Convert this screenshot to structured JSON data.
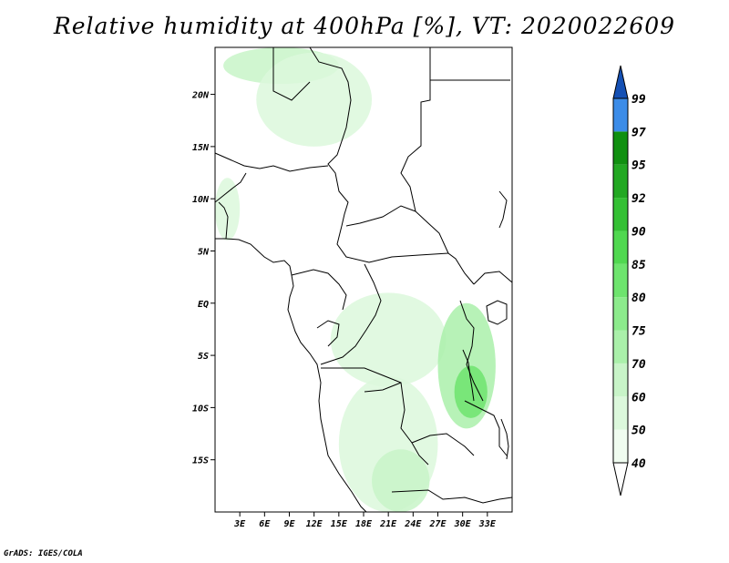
{
  "title": "Relative humidity at 400hPa [%], VT: 2020022609",
  "credit": "GrADS: IGES/COLA",
  "map": {
    "lon_range": [
      0,
      36
    ],
    "lat_range": [
      -20,
      24.5
    ],
    "lat_ticks": [
      {
        "value": 20,
        "label": "20N"
      },
      {
        "value": 15,
        "label": "15N"
      },
      {
        "value": 10,
        "label": "10N"
      },
      {
        "value": 5,
        "label": "5N"
      },
      {
        "value": 0,
        "label": "EQ"
      },
      {
        "value": -5,
        "label": "5S"
      },
      {
        "value": -10,
        "label": "10S"
      },
      {
        "value": -15,
        "label": "15S"
      }
    ],
    "lon_ticks": [
      {
        "value": 3,
        "label": "3E"
      },
      {
        "value": 6,
        "label": "6E"
      },
      {
        "value": 9,
        "label": "9E"
      },
      {
        "value": 12,
        "label": "12E"
      },
      {
        "value": 15,
        "label": "15E"
      },
      {
        "value": 18,
        "label": "18E"
      },
      {
        "value": 21,
        "label": "21E"
      },
      {
        "value": 24,
        "label": "24E"
      },
      {
        "value": 27,
        "label": "27E"
      },
      {
        "value": 30,
        "label": "30E"
      },
      {
        "value": 33,
        "label": "33E"
      }
    ]
  },
  "colorbar": {
    "levels": [
      {
        "label": "40",
        "color": "#f0fcf0"
      },
      {
        "label": "50",
        "color": "#dcf8dc"
      },
      {
        "label": "60",
        "color": "#c8f4c8"
      },
      {
        "label": "70",
        "color": "#aaf0aa"
      },
      {
        "label": "75",
        "color": "#8ceb8c"
      },
      {
        "label": "80",
        "color": "#6ee46e"
      },
      {
        "label": "85",
        "color": "#50d850"
      },
      {
        "label": "90",
        "color": "#34c034"
      },
      {
        "label": "92",
        "color": "#22a822"
      },
      {
        "label": "95",
        "color": "#109010"
      },
      {
        "label": "97",
        "color": "#3c8ce8"
      },
      {
        "label": "99",
        "color": "#1e64d2"
      }
    ],
    "bottom_color": "#ffffff",
    "top_color": "#1450b4"
  },
  "humidity_regions": [
    {
      "name": "sahara-north",
      "level": 2,
      "lon": [
        1,
        15
      ],
      "lat": [
        21,
        24.5
      ]
    },
    {
      "name": "sahara-plume",
      "level": 1,
      "lon": [
        5,
        19
      ],
      "lat": [
        15,
        24
      ]
    },
    {
      "name": "west-coast",
      "level": 1,
      "lon": [
        0,
        3
      ],
      "lat": [
        6,
        12
      ]
    },
    {
      "name": "congo-band",
      "level": 1,
      "lon": [
        14,
        28
      ],
      "lat": [
        -8,
        1
      ]
    },
    {
      "name": "east-lakes",
      "level": 3,
      "lon": [
        27,
        34
      ],
      "lat": [
        -12,
        0
      ]
    },
    {
      "name": "lakes-core",
      "level": 5,
      "lon": [
        29,
        33
      ],
      "lat": [
        -11,
        -6
      ]
    },
    {
      "name": "angola-south",
      "level": 1,
      "lon": [
        15,
        27
      ],
      "lat": [
        -20,
        -7
      ]
    },
    {
      "name": "zambia",
      "level": 2,
      "lon": [
        19,
        26
      ],
      "lat": [
        -20,
        -14
      ]
    }
  ]
}
